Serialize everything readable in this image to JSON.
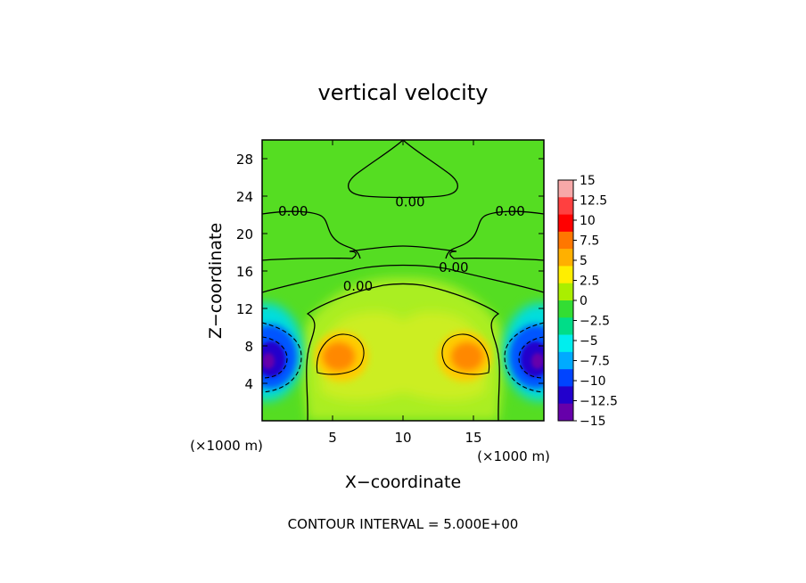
{
  "chart_data": {
    "type": "heatmap",
    "title": "vertical velocity",
    "xlabel": "X−coordinate",
    "ylabel": "Z−coordinate",
    "x_unit_left": "(×1000 m)",
    "x_unit_right": "(×1000 m)",
    "xlim": [
      0,
      20
    ],
    "ylim": [
      0,
      30
    ],
    "x_ticks": [
      5,
      10,
      15
    ],
    "y_ticks": [
      4,
      8,
      12,
      16,
      20,
      24,
      28
    ],
    "colorbar": {
      "labels": [
        "15",
        "12.5",
        "10",
        "7.5",
        "5",
        "2.5",
        "0",
        "−2.5",
        "−5",
        "−7.5",
        "−10",
        "−12.5",
        "−15"
      ],
      "colors": [
        "#f7a8a8",
        "#ff4040",
        "#ff0000",
        "#ff7700",
        "#ffb000",
        "#ffee00",
        "#aaee00",
        "#33dd33",
        "#00dd88",
        "#00eeee",
        "#00aaff",
        "#0044ff",
        "#2200cc",
        "#6600aa"
      ]
    },
    "contour_labels": [
      {
        "text": "0.00",
        "x": 10.5,
        "y": 23.5
      },
      {
        "text": "0.00",
        "x": 2.2,
        "y": 22.5
      },
      {
        "text": "0.00",
        "x": 17.6,
        "y": 22.5
      },
      {
        "text": "0.00",
        "x": 13.6,
        "y": 16.5
      },
      {
        "text": "0.00",
        "x": 6.8,
        "y": 14.5
      }
    ],
    "contour_interval_text": "CONTOUR INTERVAL = 5.000E+00"
  }
}
